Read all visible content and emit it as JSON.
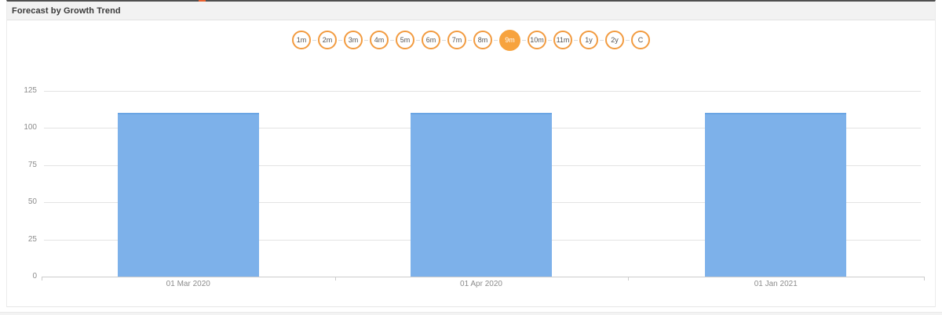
{
  "panel": {
    "title": "Forecast by Growth Trend"
  },
  "range_selector": {
    "options": [
      "1m",
      "2m",
      "3m",
      "4m",
      "5m",
      "6m",
      "7m",
      "8m",
      "9m",
      "10m",
      "11m",
      "1y",
      "2y",
      "C"
    ],
    "active": "9m",
    "colors": {
      "border": "#f29b40",
      "active_bg": "#f7a33e",
      "active_text": "#ffffff",
      "inactive_text": "#555555"
    }
  },
  "chart_data": {
    "type": "bar",
    "title": "Forecast by Growth Trend",
    "categories": [
      "01 Mar 2020",
      "01 Apr 2020",
      "01 Jan 2021"
    ],
    "values": [
      110,
      110,
      110
    ],
    "xlabel": "",
    "ylabel": "",
    "ylim": [
      0,
      125
    ],
    "yticks": [
      0,
      25,
      50,
      75,
      100,
      125
    ],
    "grid": true,
    "legend": "none",
    "bar_color": "#7db1ea"
  }
}
